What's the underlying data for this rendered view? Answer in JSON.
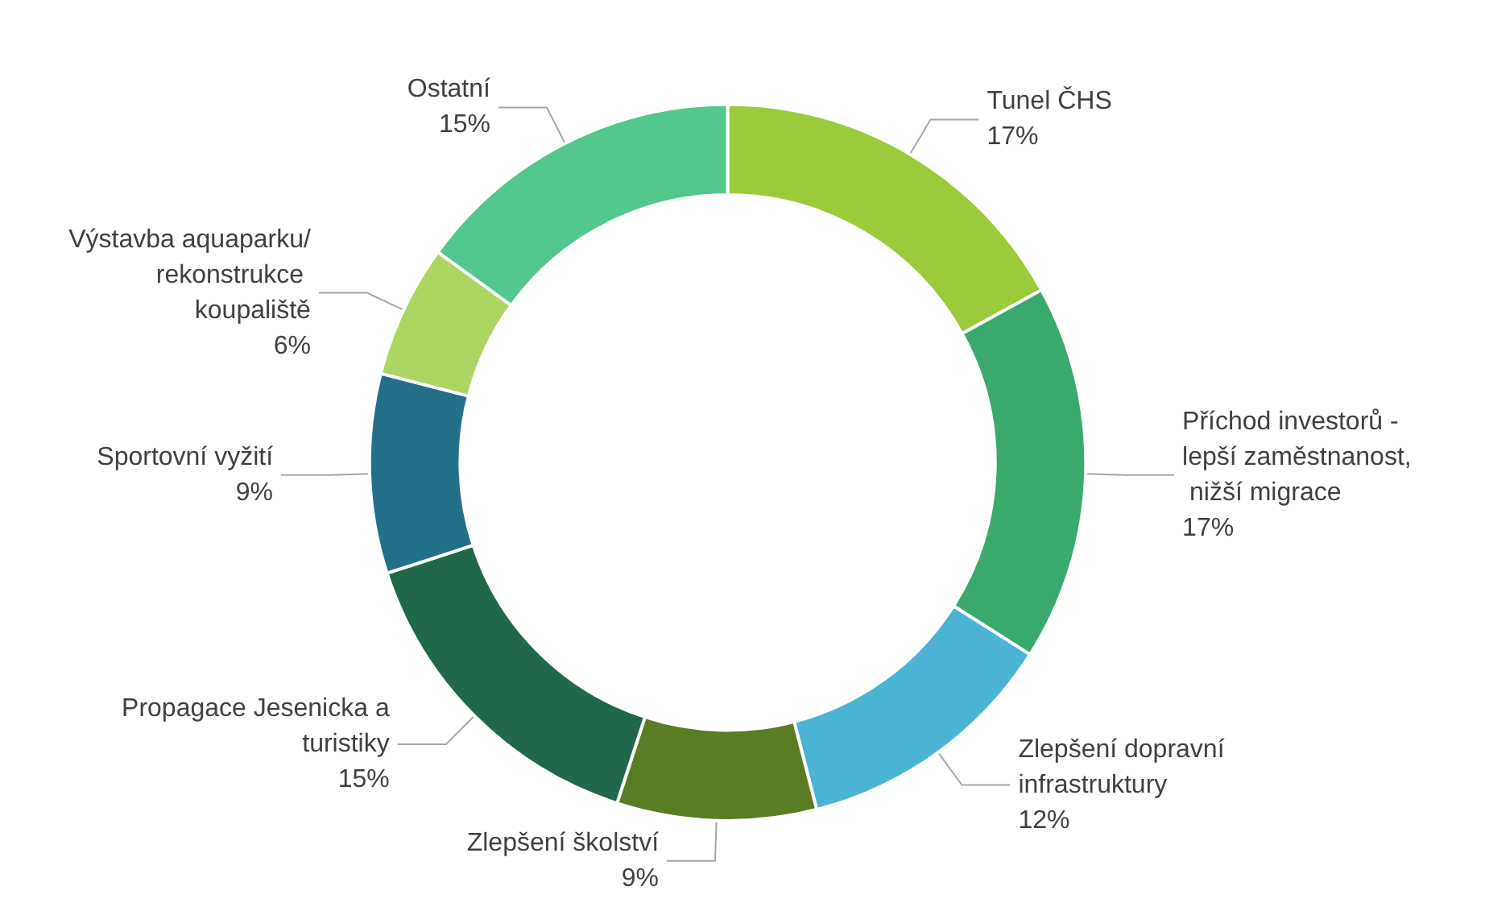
{
  "chart_data": {
    "type": "donut",
    "categories": [
      "Tunel ČHS",
      "Příchod investorů - lepší zaměstnanost, nižší migrace",
      "Zlepšení dopravní infrastruktury",
      "Zlepšení školství",
      "Propagace Jesenicka a turistiky",
      "Sportovní vyžití",
      "Výstavba aquaparku/rekonstrukce koupaliště",
      "Ostatní"
    ],
    "values": [
      17,
      17,
      12,
      9,
      15,
      9,
      6,
      15
    ],
    "value_labels": [
      "17%",
      "17%",
      "12%",
      "9%",
      "15%",
      "9%",
      "6%",
      "15%"
    ],
    "colors": [
      "#9bcb3b",
      "#3aa96e",
      "#4bb3d3",
      "#5a7d23",
      "#21674a",
      "#226f8a",
      "#acd661",
      "#52c78e"
    ],
    "legend": false
  }
}
